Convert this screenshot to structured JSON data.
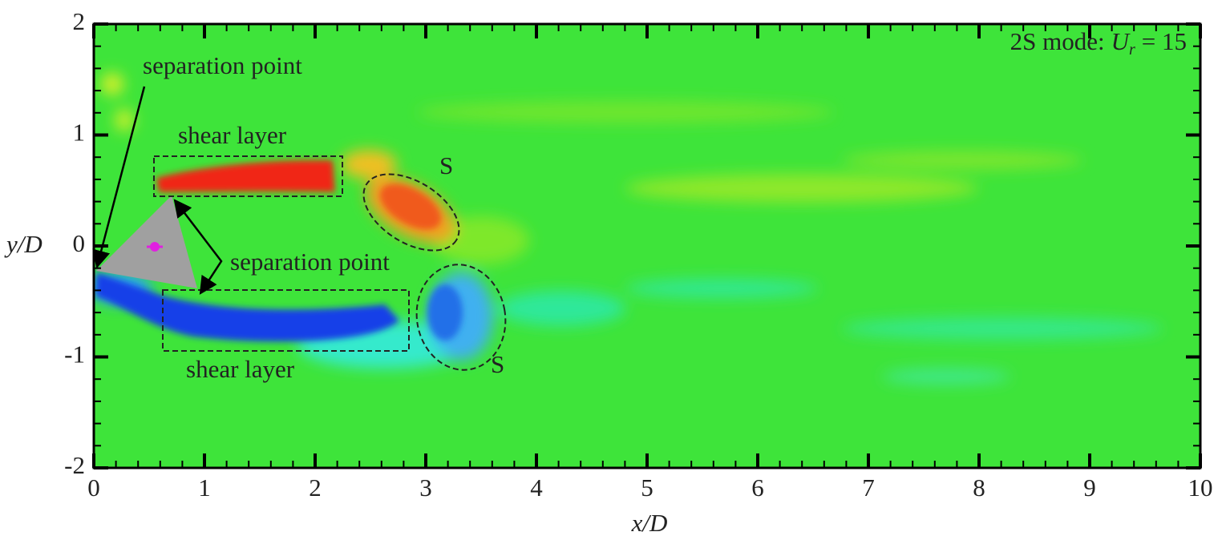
{
  "chart_data": {
    "type": "contour",
    "title": {
      "prefix": "2S mode:",
      "symbol": "U",
      "subscript": "r",
      "suffix": "= 15"
    },
    "xlabel": "x/D",
    "ylabel": "y/D",
    "xlim": [
      0,
      10
    ],
    "xticks": [
      0,
      1,
      2,
      3,
      4,
      5,
      6,
      7,
      8,
      9,
      10
    ],
    "ylim": [
      -2,
      2
    ],
    "yticks": [
      -2,
      -1,
      0,
      1,
      2
    ],
    "annotations": [
      "separation point",
      "separation point",
      "shear layer",
      "shear layer",
      "S",
      "S"
    ]
  }
}
